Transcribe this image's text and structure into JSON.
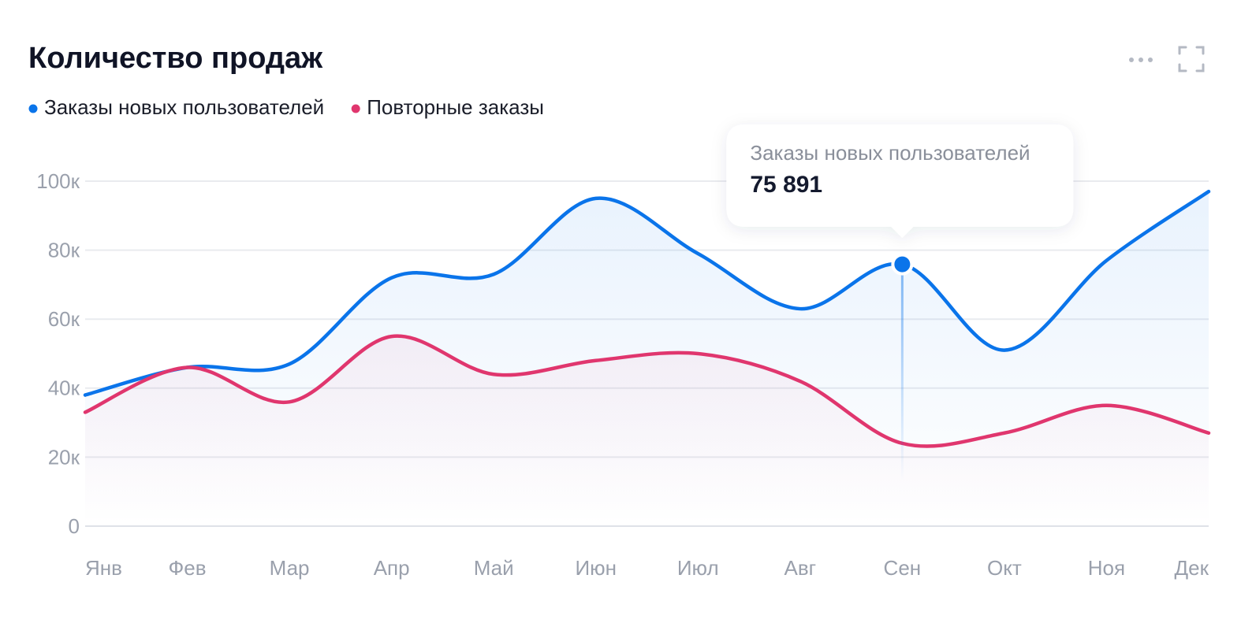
{
  "chart_data": {
    "type": "line",
    "title": "Количество продаж",
    "categories": [
      "Янв",
      "Фев",
      "Мар",
      "Апр",
      "Май",
      "Июн",
      "Июл",
      "Авг",
      "Сен",
      "Окт",
      "Ноя",
      "Дек"
    ],
    "series": [
      {
        "name": "Заказы новых пользователей",
        "color": "#0a74ea",
        "values": [
          38000,
          46000,
          47000,
          72000,
          73000,
          95000,
          79000,
          63000,
          75891,
          51000,
          77000,
          97000
        ],
        "value_labels": [
          null,
          null,
          null,
          null,
          null,
          null,
          null,
          null,
          "75 891",
          null,
          null,
          null
        ]
      },
      {
        "name": "Повторные заказы",
        "color": "#e0366e",
        "values": [
          33000,
          46000,
          36000,
          55000,
          44000,
          48000,
          50000,
          42000,
          24000,
          27000,
          35000,
          27000
        ]
      }
    ],
    "ylim": [
      0,
      100000
    ],
    "yticks": [
      0,
      {
        "value": 20000,
        "label": "20к"
      },
      {
        "value": 40000,
        "label": "40к"
      },
      {
        "value": 60000,
        "label": "60к"
      },
      {
        "value": 80000,
        "label": "80к"
      },
      {
        "value": 100000,
        "label": "100к"
      }
    ],
    "grid": true,
    "tooltip": {
      "series": 0,
      "index": 8
    }
  }
}
